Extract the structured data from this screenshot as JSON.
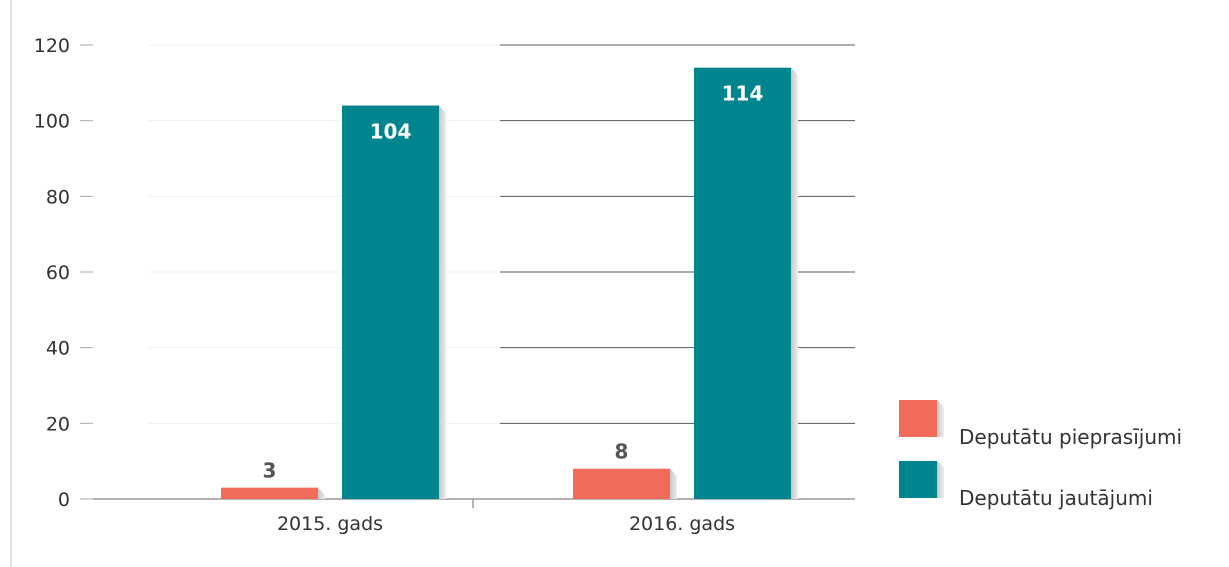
{
  "chart_data": {
    "type": "bar",
    "categories": [
      "2015. gads",
      "2016. gads"
    ],
    "series": [
      {
        "name": "Deputātu pieprasījumi",
        "values": [
          3,
          8
        ],
        "color": "#f26b5b"
      },
      {
        "name": "Deputātu jautājumi",
        "values": [
          104,
          114
        ],
        "color": "#00858f"
      }
    ],
    "ylim": [
      0,
      120
    ],
    "yticks": [
      0,
      20,
      40,
      60,
      80,
      100,
      120
    ],
    "grid": true,
    "legend": "right",
    "data_labels": true,
    "label_colors": {
      "light_bar": "#555555",
      "dark_bar": "#ffffff"
    }
  }
}
